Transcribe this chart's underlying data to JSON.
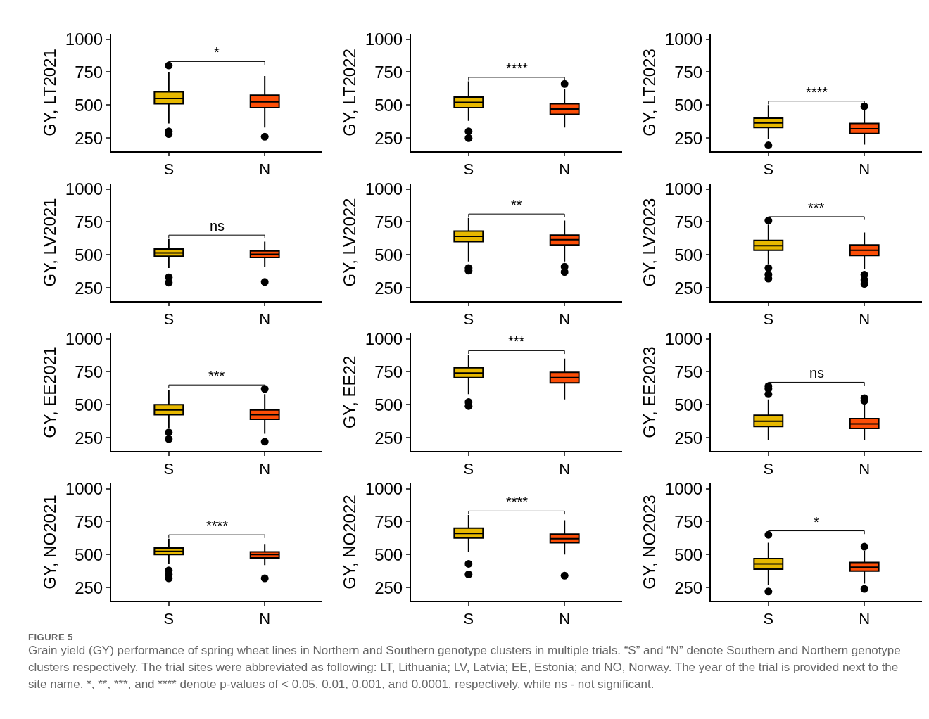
{
  "chart_data": [
    {
      "type": "box",
      "ylabel": "GY, LT2021",
      "categories": [
        "S",
        "N"
      ],
      "colors": [
        "#e7b800",
        "#fc4e07"
      ],
      "ylim": [
        150,
        1040
      ],
      "yticks": [
        250,
        500,
        750,
        1000
      ],
      "grid": false,
      "annotations": [
        "*"
      ],
      "boxes": [
        {
          "low": 360,
          "q1": 510,
          "median": 550,
          "q3": 600,
          "high": 750,
          "outliers": [
            300,
            280,
            800
          ]
        },
        {
          "low": 330,
          "q1": 480,
          "median": 525,
          "q3": 575,
          "high": 720,
          "outliers": [
            260
          ]
        }
      ]
    },
    {
      "type": "box",
      "ylabel": "GY, LT2022",
      "categories": [
        "S",
        "N"
      ],
      "colors": [
        "#e7b800",
        "#fc4e07"
      ],
      "ylim": [
        150,
        1040
      ],
      "yticks": [
        250,
        500,
        750,
        1000
      ],
      "grid": false,
      "annotations": [
        "****"
      ],
      "boxes": [
        {
          "low": 380,
          "q1": 480,
          "median": 520,
          "q3": 560,
          "high": 680,
          "outliers": [
            300,
            250
          ]
        },
        {
          "low": 330,
          "q1": 430,
          "median": 470,
          "q3": 510,
          "high": 620,
          "outliers": [
            660
          ]
        }
      ]
    },
    {
      "type": "box",
      "ylabel": "GY, LT2023",
      "categories": [
        "S",
        "N"
      ],
      "colors": [
        "#e7b800",
        "#fc4e07"
      ],
      "ylim": [
        150,
        1040
      ],
      "yticks": [
        250,
        500,
        750,
        1000
      ],
      "grid": false,
      "annotations": [
        "****"
      ],
      "boxes": [
        {
          "low": 240,
          "q1": 330,
          "median": 365,
          "q3": 400,
          "high": 500,
          "outliers": [
            195
          ]
        },
        {
          "low": 200,
          "q1": 285,
          "median": 320,
          "q3": 360,
          "high": 470,
          "outliers": [
            490
          ]
        }
      ]
    },
    {
      "type": "box",
      "ylabel": "GY, LV2021",
      "categories": [
        "S",
        "N"
      ],
      "colors": [
        "#e7b800",
        "#fc4e07"
      ],
      "ylim": [
        150,
        1040
      ],
      "yticks": [
        250,
        500,
        750,
        1000
      ],
      "grid": false,
      "annotations": [
        "ns"
      ],
      "boxes": [
        {
          "low": 400,
          "q1": 490,
          "median": 515,
          "q3": 545,
          "high": 620,
          "outliers": [
            330,
            290
          ]
        },
        {
          "low": 410,
          "q1": 480,
          "median": 505,
          "q3": 530,
          "high": 600,
          "outliers": [
            295
          ]
        }
      ]
    },
    {
      "type": "box",
      "ylabel": "GY, LV2022",
      "categories": [
        "S",
        "N"
      ],
      "colors": [
        "#e7b800",
        "#fc4e07"
      ],
      "ylim": [
        150,
        1040
      ],
      "yticks": [
        250,
        500,
        750,
        1000
      ],
      "grid": false,
      "annotations": [
        "**"
      ],
      "boxes": [
        {
          "low": 450,
          "q1": 600,
          "median": 640,
          "q3": 680,
          "high": 780,
          "outliers": [
            400,
            380
          ]
        },
        {
          "low": 450,
          "q1": 575,
          "median": 615,
          "q3": 650,
          "high": 760,
          "outliers": [
            410,
            370
          ]
        }
      ]
    },
    {
      "type": "box",
      "ylabel": "GY, LV2023",
      "categories": [
        "S",
        "N"
      ],
      "colors": [
        "#e7b800",
        "#fc4e07"
      ],
      "ylim": [
        150,
        1040
      ],
      "yticks": [
        250,
        500,
        750,
        1000
      ],
      "grid": false,
      "annotations": [
        "***"
      ],
      "boxes": [
        {
          "low": 430,
          "q1": 535,
          "median": 570,
          "q3": 610,
          "high": 730,
          "outliers": [
            760,
            400,
            350,
            320
          ]
        },
        {
          "low": 390,
          "q1": 495,
          "median": 535,
          "q3": 575,
          "high": 670,
          "outliers": [
            350,
            310,
            280
          ]
        }
      ]
    },
    {
      "type": "box",
      "ylabel": "GY, EE2021",
      "categories": [
        "S",
        "N"
      ],
      "colors": [
        "#e7b800",
        "#fc4e07"
      ],
      "ylim": [
        150,
        1040
      ],
      "yticks": [
        250,
        500,
        750,
        1000
      ],
      "grid": false,
      "annotations": [
        "***"
      ],
      "boxes": [
        {
          "low": 320,
          "q1": 425,
          "median": 460,
          "q3": 500,
          "high": 610,
          "outliers": [
            290,
            240
          ]
        },
        {
          "low": 280,
          "q1": 390,
          "median": 425,
          "q3": 460,
          "high": 580,
          "outliers": [
            620,
            220
          ]
        }
      ]
    },
    {
      "type": "box",
      "ylabel": "GY, EE22",
      "categories": [
        "S",
        "N"
      ],
      "colors": [
        "#e7b800",
        "#fc4e07"
      ],
      "ylim": [
        150,
        1040
      ],
      "yticks": [
        250,
        500,
        750,
        1000
      ],
      "grid": false,
      "annotations": [
        "***"
      ],
      "boxes": [
        {
          "low": 580,
          "q1": 705,
          "median": 740,
          "q3": 780,
          "high": 880,
          "outliers": [
            520,
            490
          ]
        },
        {
          "low": 540,
          "q1": 665,
          "median": 705,
          "q3": 745,
          "high": 850
        }
      ]
    },
    {
      "type": "box",
      "ylabel": "GY, EE2023",
      "categories": [
        "S",
        "N"
      ],
      "colors": [
        "#e7b800",
        "#fc4e07"
      ],
      "ylim": [
        150,
        1040
      ],
      "yticks": [
        250,
        500,
        750,
        1000
      ],
      "grid": false,
      "annotations": [
        "ns"
      ],
      "boxes": [
        {
          "low": 230,
          "q1": 335,
          "median": 375,
          "q3": 420,
          "high": 540,
          "outliers": [
            580,
            620,
            640
          ]
        },
        {
          "low": 230,
          "q1": 320,
          "median": 355,
          "q3": 395,
          "high": 500,
          "outliers": [
            530,
            550
          ]
        }
      ]
    },
    {
      "type": "box",
      "ylabel": "GY, NO2021",
      "categories": [
        "S",
        "N"
      ],
      "colors": [
        "#e7b800",
        "#fc4e07"
      ],
      "ylim": [
        150,
        1040
      ],
      "yticks": [
        250,
        500,
        750,
        1000
      ],
      "grid": false,
      "annotations": [
        "****"
      ],
      "boxes": [
        {
          "low": 430,
          "q1": 500,
          "median": 525,
          "q3": 550,
          "high": 620,
          "outliers": [
            380,
            350,
            320
          ]
        },
        {
          "low": 420,
          "q1": 475,
          "median": 500,
          "q3": 520,
          "high": 580,
          "outliers": [
            320
          ]
        }
      ]
    },
    {
      "type": "box",
      "ylabel": "GY, NO2022",
      "categories": [
        "S",
        "N"
      ],
      "colors": [
        "#e7b800",
        "#fc4e07"
      ],
      "ylim": [
        150,
        1040
      ],
      "yticks": [
        250,
        500,
        750,
        1000
      ],
      "grid": false,
      "annotations": [
        "****"
      ],
      "boxes": [
        {
          "low": 520,
          "q1": 625,
          "median": 660,
          "q3": 700,
          "high": 800,
          "outliers": [
            430,
            350
          ]
        },
        {
          "low": 500,
          "q1": 590,
          "median": 620,
          "q3": 655,
          "high": 760,
          "outliers": [
            340
          ]
        }
      ]
    },
    {
      "type": "box",
      "ylabel": "GY, NO2023",
      "categories": [
        "S",
        "N"
      ],
      "colors": [
        "#e7b800",
        "#fc4e07"
      ],
      "ylim": [
        150,
        1040
      ],
      "yticks": [
        250,
        500,
        750,
        1000
      ],
      "grid": false,
      "annotations": [
        "*",
        "FIGURE 5",
        "Grain yield (GY) performance of spring wheat lines in Northern and Southern genotype clusters in multiple trials. “S” and “N” denote Southern and Northern genotype clusters respectively. The trial sites were abbreviated as following: LT, Lithuania; LV, Latvia; EE, Estonia; and NO, Norway. The year of the trial is provided next to the site name. *, **, ***, and **** denote p-values of < 0.05, 0.01, 0.001, and 0.0001, respectively, while ns - not significant."
      ],
      "boxes": [
        {
          "low": 270,
          "q1": 390,
          "median": 430,
          "q3": 470,
          "high": 590,
          "outliers": [
            650,
            220
          ]
        },
        {
          "low": 280,
          "q1": 375,
          "median": 405,
          "q3": 440,
          "high": 530,
          "outliers": [
            560,
            240
          ]
        }
      ]
    }
  ]
}
